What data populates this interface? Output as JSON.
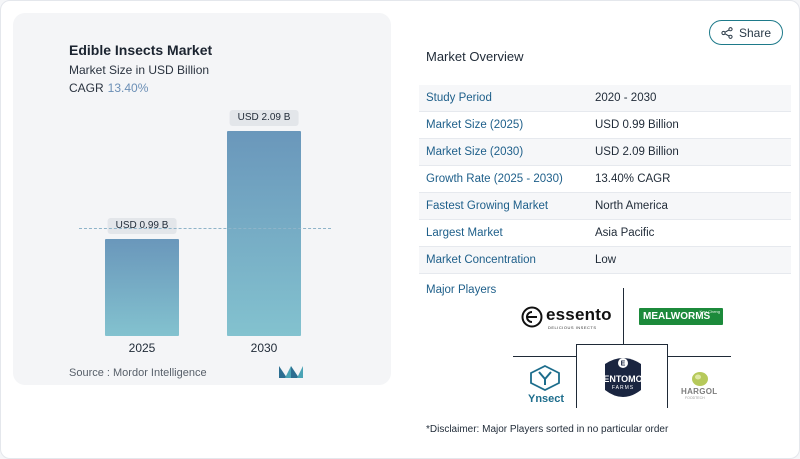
{
  "header": {
    "share_label": "Share"
  },
  "chart_panel": {
    "title": "Edible Insects Market",
    "subtitle": "Market Size in USD Billion",
    "cagr_label": "CAGR",
    "cagr_value": "13.40%",
    "source": "Source :  Mordor Intelligence"
  },
  "chart_data": {
    "type": "bar",
    "title": "Edible Insects Market",
    "subtitle": "Market Size in USD Billion",
    "categories": [
      "2025",
      "2030"
    ],
    "values": [
      0.99,
      2.09
    ],
    "data_labels": [
      "USD 0.99 B",
      "USD 2.09 B"
    ],
    "ylim": [
      0,
      2.35
    ],
    "grid": false,
    "colors": {
      "bar_top": "#6a97bb",
      "bar_bottom": "#83c2cf",
      "reference_line": "#8fb4c9"
    }
  },
  "overview": {
    "title": "Market Overview",
    "rows": [
      {
        "key": "Study Period",
        "value": "2020 - 2030"
      },
      {
        "key": "Market Size (2025)",
        "value": "USD 0.99 Billion"
      },
      {
        "key": "Market Size (2030)",
        "value": "USD 2.09 Billion"
      },
      {
        "key": "Growth Rate (2025 - 2030)",
        "value": "13.40% CAGR"
      },
      {
        "key": "Fastest Growing Market",
        "value": "North America"
      },
      {
        "key": "Largest Market",
        "value": "Asia Pacific"
      },
      {
        "key": "Market Concentration",
        "value": "Low"
      }
    ]
  },
  "players": {
    "title": "Major Players",
    "logos": {
      "essento": {
        "name": "essento",
        "tagline": "DELICIOUS INSECTS"
      },
      "mealworms": {
        "name": "MEALWORMS",
        "badge": "Kerr Cheng"
      },
      "ynsect": {
        "name": "Ynsect"
      },
      "entomo": {
        "name": "ENTOMO",
        "sub": "FARMS"
      },
      "hargol": {
        "name": "HARGOL",
        "tagline": "FOODTECH"
      }
    }
  },
  "disclaimer": "*Disclaimer: Major Players sorted in no particular order",
  "theme": {
    "accent": "#1e5f8a",
    "share_border": "#1e7a8a",
    "panel_bg": "#f4f5f7"
  }
}
